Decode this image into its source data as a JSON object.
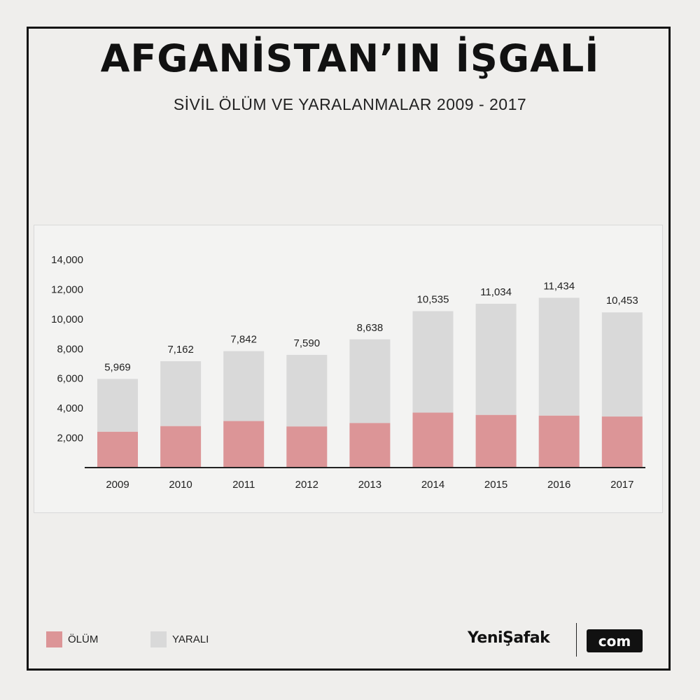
{
  "header": {
    "title": "AFGANİSTAN’IN İŞGALİ",
    "subtitle": "SİVİL ÖLÜM VE YARALANMALAR 2009 - 2017"
  },
  "colors": {
    "death": "#dc9597",
    "injured": "#d9d9d9",
    "axis": "#222222",
    "text": "#222222"
  },
  "legend": {
    "death_label": "ÖLÜM",
    "injured_label": "YARALI"
  },
  "brand": {
    "name": "YeniŞafak",
    "tag": "com"
  },
  "chart_data": {
    "type": "bar",
    "stacked": true,
    "categories": [
      "2009",
      "2010",
      "2011",
      "2012",
      "2013",
      "2014",
      "2015",
      "2016",
      "2017"
    ],
    "series": [
      {
        "name": "ÖLÜM",
        "values": [
          2412,
          2792,
          3133,
          2769,
          3000,
          3701,
          3545,
          3498,
          3438
        ]
      },
      {
        "name": "YARALI",
        "values": [
          3557,
          4370,
          4709,
          4821,
          5638,
          6834,
          7489,
          7936,
          7015
        ]
      }
    ],
    "totals": [
      5969,
      7162,
      7842,
      7590,
      8638,
      10535,
      11034,
      11434,
      10453
    ],
    "total_labels": [
      "5,969",
      "7,162",
      "7,842",
      "7,590",
      "8,638",
      "10,535",
      "11,034",
      "11,434",
      "10,453"
    ],
    "yticks": [
      2000,
      4000,
      6000,
      8000,
      10000,
      12000,
      14000
    ],
    "ytick_labels": [
      "2,000",
      "4,000",
      "6,000",
      "8,000",
      "10,000",
      "12,000",
      "14,000"
    ],
    "ylim": [
      0,
      14000
    ],
    "grid": false,
    "legend_position": "bottom-left"
  }
}
